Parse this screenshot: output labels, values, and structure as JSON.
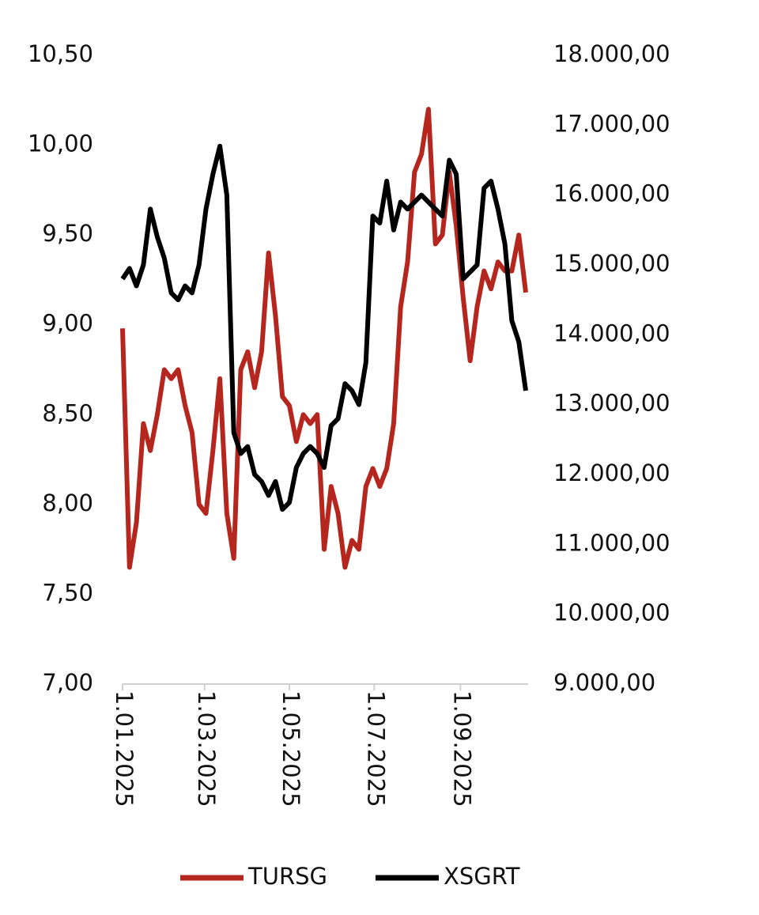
{
  "chart_data": {
    "type": "line",
    "x": [
      "2025-01-01",
      "2025-01-06",
      "2025-01-11",
      "2025-01-16",
      "2025-01-21",
      "2025-01-26",
      "2025-01-31",
      "2025-02-05",
      "2025-02-10",
      "2025-02-15",
      "2025-02-20",
      "2025-02-25",
      "2025-03-02",
      "2025-03-07",
      "2025-03-12",
      "2025-03-17",
      "2025-03-22",
      "2025-03-27",
      "2025-04-01",
      "2025-04-06",
      "2025-04-11",
      "2025-04-16",
      "2025-04-21",
      "2025-04-26",
      "2025-05-01",
      "2025-05-06",
      "2025-05-11",
      "2025-05-16",
      "2025-05-21",
      "2025-05-26",
      "2025-05-31",
      "2025-06-05",
      "2025-06-10",
      "2025-06-15",
      "2025-06-20",
      "2025-06-25",
      "2025-06-30",
      "2025-07-05",
      "2025-07-10",
      "2025-07-15",
      "2025-07-20",
      "2025-07-25",
      "2025-07-30",
      "2025-08-04",
      "2025-08-09",
      "2025-08-14",
      "2025-08-19",
      "2025-08-24",
      "2025-08-29",
      "2025-09-03",
      "2025-09-08",
      "2025-09-13",
      "2025-09-18",
      "2025-09-23",
      "2025-09-28",
      "2025-10-03",
      "2025-10-08",
      "2025-10-13",
      "2025-10-18"
    ],
    "series": [
      {
        "name": "TURSG",
        "color": "#b5261e",
        "values": [
          8.98,
          7.65,
          7.9,
          8.45,
          8.3,
          8.5,
          8.75,
          8.7,
          8.75,
          8.55,
          8.4,
          8.0,
          7.95,
          8.3,
          8.7,
          7.95,
          7.7,
          8.75,
          8.85,
          8.65,
          8.85,
          9.4,
          9.05,
          8.6,
          8.55,
          8.35,
          8.5,
          8.45,
          8.5,
          7.75,
          8.1,
          7.95,
          7.65,
          7.8,
          7.75,
          8.1,
          8.2,
          8.1,
          8.2,
          8.45,
          9.1,
          9.35,
          9.85,
          9.95,
          10.2,
          9.45,
          9.5,
          9.85,
          9.55,
          9.15,
          8.8,
          9.1,
          9.3,
          9.2,
          9.35,
          9.3,
          9.3,
          9.5,
          9.18
        ]
      },
      {
        "name": "XSGRT",
        "color": "#000000",
        "axis": "y2",
        "values": [
          14800,
          14950,
          14700,
          15000,
          15800,
          15400,
          15100,
          14600,
          14500,
          14700,
          14600,
          15000,
          15800,
          16300,
          16700,
          16000,
          12600,
          12300,
          12400,
          12000,
          11900,
          11700,
          11900,
          11500,
          11600,
          12100,
          12300,
          12400,
          12300,
          12100,
          12700,
          12800,
          13300,
          13200,
          13000,
          13600,
          15700,
          15600,
          16200,
          15500,
          15900,
          15800,
          15900,
          16000,
          15900,
          15800,
          15700,
          16500,
          16300,
          14800,
          14900,
          15000,
          16100,
          16200,
          15800,
          15300,
          14200,
          13900,
          13200
        ]
      }
    ],
    "xlim": [
      "2025-01-01",
      "2025-10-18"
    ],
    "xticks": [
      {
        "value": "2025-01-01",
        "label": "1.01.2025"
      },
      {
        "value": "2025-03-01",
        "label": "1.03.2025"
      },
      {
        "value": "2025-05-01",
        "label": "1.05.2025"
      },
      {
        "value": "2025-07-01",
        "label": "1.07.2025"
      },
      {
        "value": "2025-09-01",
        "label": "1.09.2025"
      }
    ],
    "ylim": [
      7,
      10.5
    ],
    "yticks": [
      {
        "value": 7,
        "label": "7,00"
      },
      {
        "value": 7.5,
        "label": "7,50"
      },
      {
        "value": 8,
        "label": "8,00"
      },
      {
        "value": 8.5,
        "label": "8,50"
      },
      {
        "value": 9,
        "label": "9,00"
      },
      {
        "value": 9.5,
        "label": "9,50"
      },
      {
        "value": 10,
        "label": "10,00"
      },
      {
        "value": 10.5,
        "label": "10,50"
      }
    ],
    "y2lim": [
      9000,
      18000
    ],
    "y2ticks": [
      {
        "value": 9000,
        "label": "9.000,00"
      },
      {
        "value": 10000,
        "label": "10.000,00"
      },
      {
        "value": 11000,
        "label": "11.000,00"
      },
      {
        "value": 12000,
        "label": "12.000,00"
      },
      {
        "value": 13000,
        "label": "13.000,00"
      },
      {
        "value": 14000,
        "label": "14.000,00"
      },
      {
        "value": 15000,
        "label": "15.000,00"
      },
      {
        "value": 16000,
        "label": "16.000,00"
      },
      {
        "value": 17000,
        "label": "17.000,00"
      },
      {
        "value": 18000,
        "label": "18.000,00"
      }
    ],
    "legend": "bottom"
  }
}
